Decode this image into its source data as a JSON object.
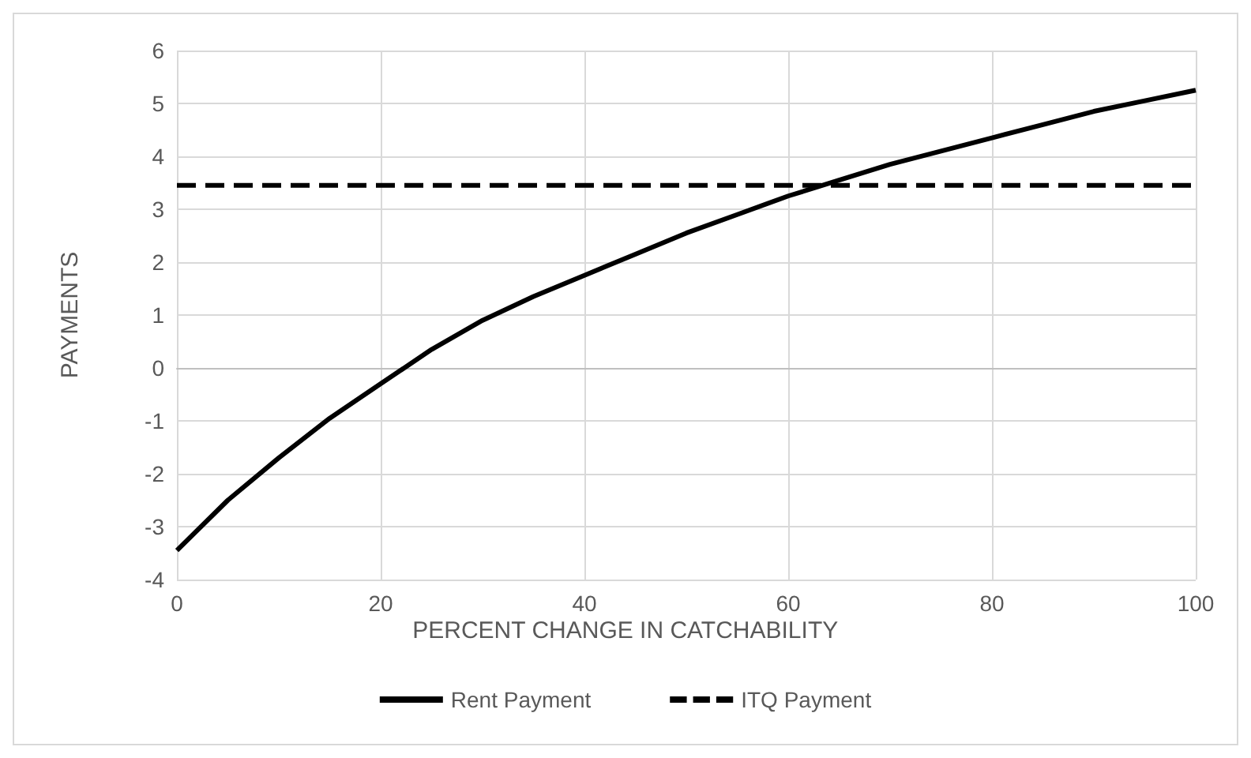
{
  "chart_data": {
    "type": "line",
    "xlabel": "PERCENT CHANGE IN CATCHABILITY",
    "ylabel": "PAYMENTS",
    "x": [
      0,
      5,
      10,
      15,
      20,
      25,
      30,
      35,
      40,
      45,
      50,
      55,
      60,
      65,
      70,
      75,
      80,
      85,
      90,
      95,
      100
    ],
    "series": [
      {
        "name": "Rent Payment",
        "color": "#000000",
        "line_style": "solid",
        "values": [
          -3.45,
          -2.5,
          -1.7,
          -0.95,
          -0.3,
          0.35,
          0.9,
          1.35,
          1.75,
          2.15,
          2.55,
          2.9,
          3.25,
          3.55,
          3.85,
          4.1,
          4.35,
          4.6,
          4.85,
          5.05,
          5.25
        ]
      },
      {
        "name": "ITQ Payment",
        "color": "#000000",
        "line_style": "dashed",
        "values": [
          3.45,
          3.45,
          3.45,
          3.45,
          3.45,
          3.45,
          3.45,
          3.45,
          3.45,
          3.45,
          3.45,
          3.45,
          3.45,
          3.45,
          3.45,
          3.45,
          3.45,
          3.45,
          3.45,
          3.45,
          3.45
        ]
      }
    ],
    "xlim": [
      0,
      100
    ],
    "xticks": [
      0,
      20,
      40,
      60,
      80,
      100
    ],
    "ylim": [
      -4,
      6
    ],
    "yticks": [
      -4,
      -3,
      -2,
      -1,
      0,
      1,
      2,
      3,
      4,
      5,
      6
    ],
    "grid": true,
    "legend": "bottom",
    "marker": "none"
  }
}
